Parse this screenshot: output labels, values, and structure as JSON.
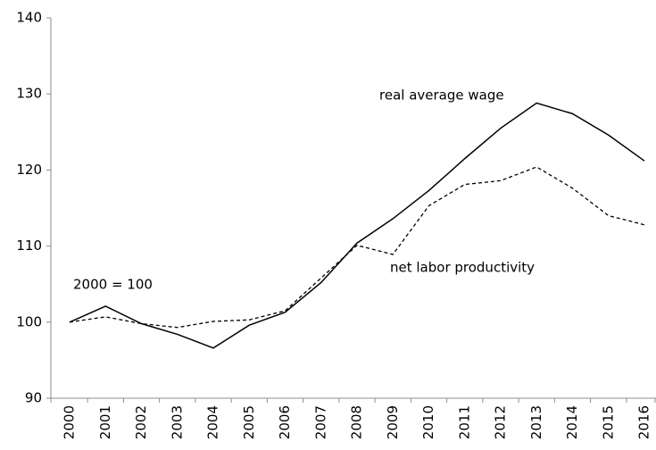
{
  "chart_data": {
    "type": "line",
    "categories": [
      "2000",
      "2001",
      "2002",
      "2003",
      "2004",
      "2005",
      "2006",
      "2007",
      "2008",
      "2009",
      "2010",
      "2011",
      "2012",
      "2013",
      "2014",
      "2015",
      "2016"
    ],
    "series": [
      {
        "name": "real average wage",
        "color": "#000000",
        "dashed": false,
        "values": [
          100,
          102.1,
          99.8,
          98.4,
          96.6,
          99.6,
          101.3,
          105.2,
          110.4,
          113.6,
          117.3,
          121.5,
          125.5,
          128.8,
          127.4,
          124.6,
          121.2
        ]
      },
      {
        "name": "net labor productivity",
        "color": "#000000",
        "dashed": true,
        "values": [
          100,
          100.7,
          99.8,
          99.3,
          100.1,
          100.3,
          101.5,
          105.8,
          110.1,
          108.9,
          115.3,
          118.1,
          118.6,
          120.4,
          117.6,
          114.0,
          112.8
        ]
      }
    ],
    "annotation": "2000 = 100",
    "ylim": [
      90,
      140
    ],
    "yticks": [
      90,
      100,
      110,
      120,
      130,
      140
    ],
    "grid": false
  }
}
